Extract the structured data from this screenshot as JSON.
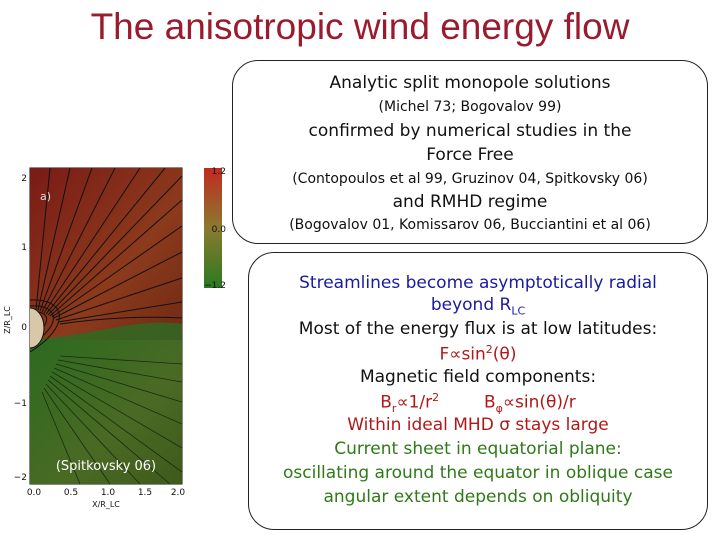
{
  "title": "The anisotropic wind energy flow",
  "box1": {
    "line1": "Analytic split monopole solutions",
    "line2": "(Michel 73; Bogovalov 99)",
    "line3": "confirmed by numerical studies in the",
    "line4": "Force Free",
    "line5": "(Contopoulos et al 99, Gruzinov 04, Spitkovsky 06)",
    "line6": "and RMHD regime",
    "line7": "(Bogovalov 01, Komissarov 06, Bucciantini et al 06)"
  },
  "box2": {
    "line1": "Streamlines become asymptotically radial",
    "line2_pre": "beyond R",
    "line2_sub": "LC",
    "line3": "Most of the energy flux is at low latitudes:",
    "line4_pre": "F∝sin",
    "line4_sup": "2",
    "line4_post": "(θ)",
    "line5": "Magnetic field components:",
    "line6a_pre": "B",
    "line6a_sub": "r",
    "line6a_mid": "∝1/r",
    "line6a_sup": "2",
    "line6b_pre": "B",
    "line6b_sub": "φ",
    "line6b_post": "∝sin(θ)/r",
    "line7": "Within ideal MHD σ stays large",
    "line8": "Current sheet in equatorial plane:",
    "line9": "oscillating around the equator in oblique case",
    "line10": "angular extent depends on obliquity"
  },
  "plot": {
    "panel_label": "a)",
    "credit": "(Spitkovsky 06)",
    "ylabel": "Z/R_LC",
    "xlabel": "X/R_LC",
    "yticks": [
      "2",
      "1",
      "0",
      "−1",
      "−2"
    ],
    "xticks": [
      "0.0",
      "0.5",
      "1.0",
      "1.5",
      "2.0"
    ],
    "colorbar_ticks": [
      "1.2",
      "0.0",
      "−1.2"
    ],
    "colors": {
      "upper": "#8a1f1a",
      "lower": "#2f6a22",
      "lines": "#111111"
    }
  }
}
